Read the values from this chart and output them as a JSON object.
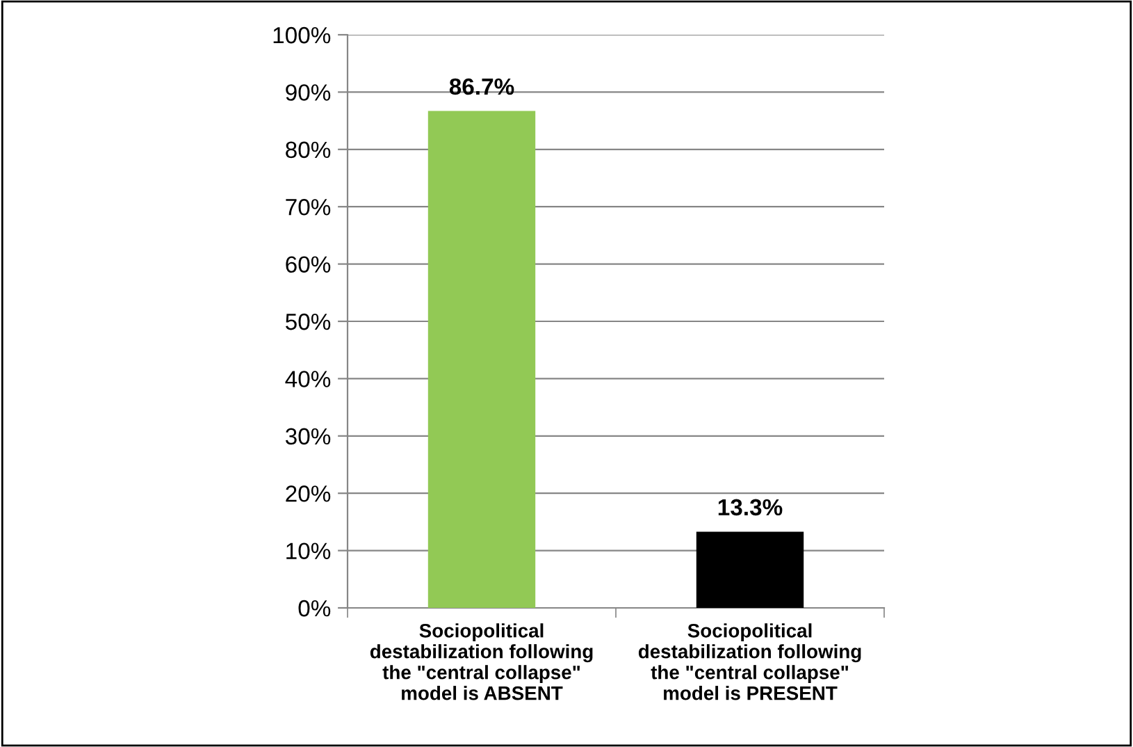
{
  "chart_data": {
    "type": "bar",
    "categories": [
      "Sociopolitical\ndestabilization following\nthe \"central collapse\"\nmodel is ABSENT",
      "Sociopolitical\ndestabilization following\nthe \"central collapse\"\nmodel is PRESENT"
    ],
    "values": [
      86.7,
      13.3
    ],
    "colors": [
      "#92c955",
      "#000000"
    ],
    "value_labels": [
      "86.7%",
      "13.3%"
    ],
    "ylim": [
      0,
      100
    ],
    "yticks": [
      {
        "value": 0,
        "label": "0%"
      },
      {
        "value": 10,
        "label": "10%"
      },
      {
        "value": 20,
        "label": "20%"
      },
      {
        "value": 30,
        "label": "30%"
      },
      {
        "value": 40,
        "label": "40%"
      },
      {
        "value": 50,
        "label": "50%"
      },
      {
        "value": 60,
        "label": "60%"
      },
      {
        "value": 70,
        "label": "70%"
      },
      {
        "value": 80,
        "label": "80%"
      },
      {
        "value": 90,
        "label": "90%"
      },
      {
        "value": 100,
        "label": "100%"
      }
    ],
    "grid": "y"
  }
}
